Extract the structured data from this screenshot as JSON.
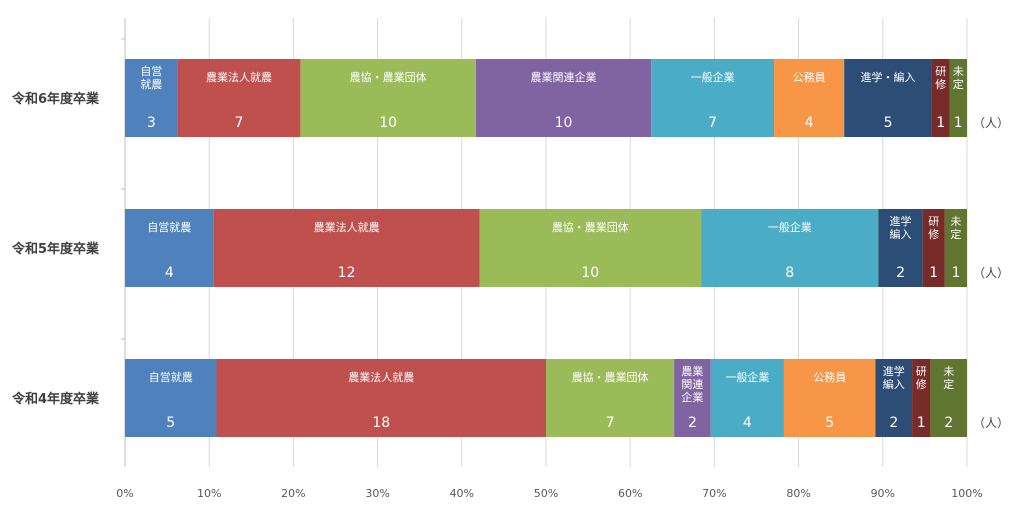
{
  "chart_data": {
    "type": "bar",
    "orientation": "horizontal",
    "stacked": "percent",
    "title": "",
    "xlabel": "",
    "ylabel": "",
    "unit": "（人）",
    "xlim": [
      0,
      100
    ],
    "x_ticks": [
      "0%",
      "10%",
      "20%",
      "30%",
      "40%",
      "50%",
      "60%",
      "70%",
      "80%",
      "90%",
      "100%"
    ],
    "grid": true,
    "legend": "none",
    "rows": [
      {
        "name": "令和6年度卒業",
        "segments": [
          {
            "label": "自営\n就農",
            "value": 3,
            "color": "#4f81bd"
          },
          {
            "label": "農業法人就農",
            "value": 7,
            "color": "#c0504d"
          },
          {
            "label": "農協・農業団体",
            "value": 10,
            "color": "#9bbb59"
          },
          {
            "label": "農業関連企業",
            "value": 10,
            "color": "#8064a2"
          },
          {
            "label": "一般企業",
            "value": 7,
            "color": "#4bacc6"
          },
          {
            "label": "公務員",
            "value": 4,
            "color": "#f79646"
          },
          {
            "label": "進学・編入",
            "value": 5,
            "color": "#2c4d75"
          },
          {
            "label": "研\n修",
            "value": 1,
            "color": "#772c2a"
          },
          {
            "label": "未\n定",
            "value": 1,
            "color": "#5f7530"
          }
        ]
      },
      {
        "name": "令和5年度卒業",
        "segments": [
          {
            "label": "自営就農",
            "value": 4,
            "color": "#4f81bd"
          },
          {
            "label": "農業法人就農",
            "value": 12,
            "color": "#c0504d"
          },
          {
            "label": "農協・農業団体",
            "value": 10,
            "color": "#9bbb59"
          },
          {
            "label": "一般企業",
            "value": 8,
            "color": "#4bacc6"
          },
          {
            "label": "進学\n編入",
            "value": 2,
            "color": "#2c4d75"
          },
          {
            "label": "研\n修",
            "value": 1,
            "color": "#772c2a"
          },
          {
            "label": "未\n定",
            "value": 1,
            "color": "#5f7530"
          }
        ]
      },
      {
        "name": "令和4年度卒業",
        "segments": [
          {
            "label": "自営就農",
            "value": 5,
            "color": "#4f81bd"
          },
          {
            "label": "農業法人就農",
            "value": 18,
            "color": "#c0504d"
          },
          {
            "label": "農協・農業団体",
            "value": 7,
            "color": "#9bbb59"
          },
          {
            "label": "農業\n関連\n企業",
            "value": 2,
            "color": "#8064a2"
          },
          {
            "label": "一般企業",
            "value": 4,
            "color": "#4bacc6"
          },
          {
            "label": "公務員",
            "value": 5,
            "color": "#f79646"
          },
          {
            "label": "進学\n編入",
            "value": 2,
            "color": "#2c4d75"
          },
          {
            "label": "研\n修",
            "value": 1,
            "color": "#772c2a"
          },
          {
            "label": "未\n定",
            "value": 2,
            "color": "#5f7530"
          }
        ]
      }
    ]
  }
}
